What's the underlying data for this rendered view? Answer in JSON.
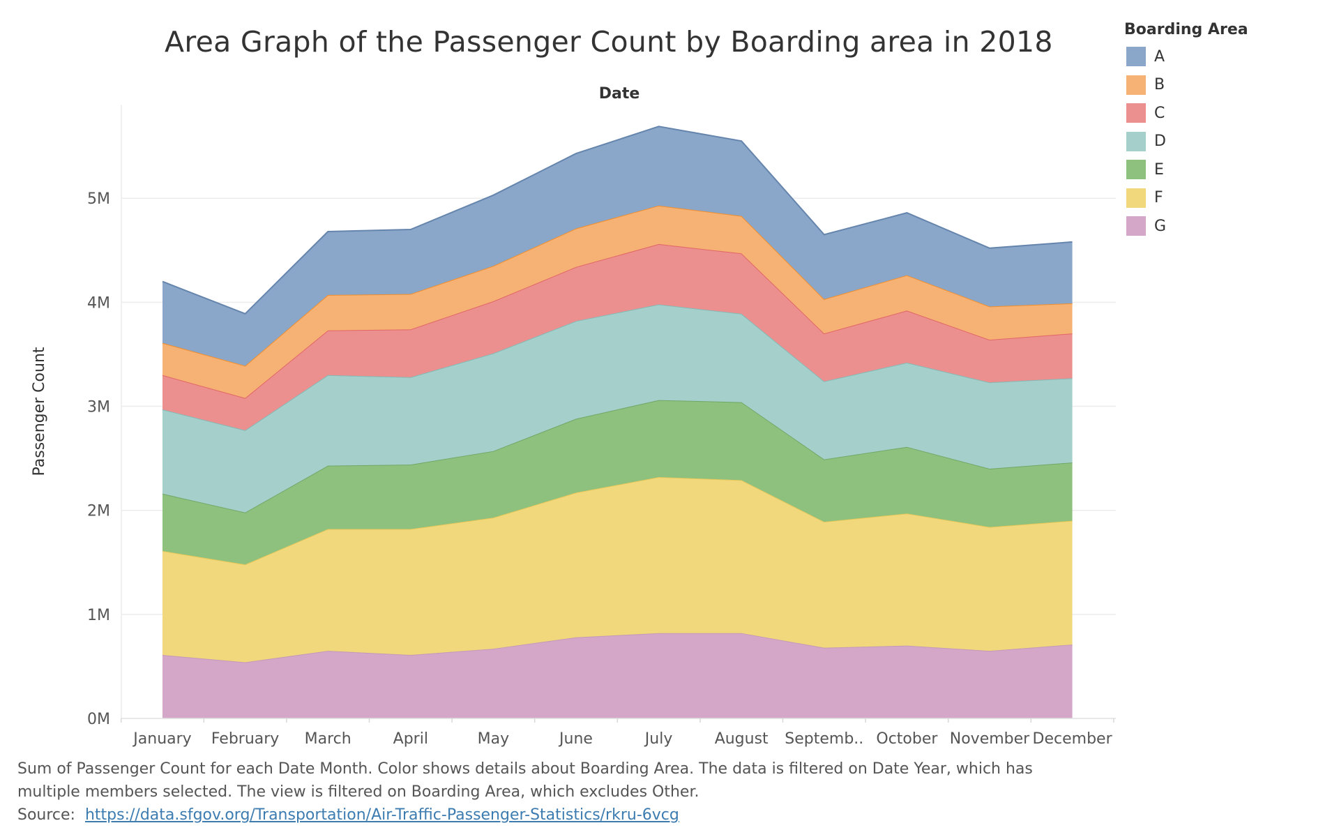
{
  "chart_data": {
    "type": "area",
    "stacked": true,
    "title": "Area Graph of the Passenger Count by Boarding area in 2018",
    "xlabel": "Date",
    "ylabel": "Passenger Count",
    "categories": [
      "January",
      "February",
      "March",
      "April",
      "May",
      "June",
      "July",
      "August",
      "Septemb..",
      "October",
      "November",
      "December"
    ],
    "yticks": [
      "0M",
      "1M",
      "2M",
      "3M",
      "4M",
      "5M"
    ],
    "ylim": [
      0,
      5900000
    ],
    "legend_title": "Boarding Area",
    "legend_position": "top-right",
    "series": [
      {
        "name": "G",
        "color": "#d4a6c8",
        "line": "#c29ab8",
        "values": [
          610000,
          540000,
          650000,
          610000,
          670000,
          780000,
          820000,
          820000,
          680000,
          700000,
          650000,
          710000
        ]
      },
      {
        "name": "F",
        "color": "#f1d87d",
        "line": "#e8c85a",
        "values": [
          1000000,
          940000,
          1170000,
          1210000,
          1260000,
          1390000,
          1500000,
          1470000,
          1210000,
          1270000,
          1190000,
          1190000
        ]
      },
      {
        "name": "E",
        "color": "#8ec07e",
        "line": "#6fa866",
        "values": [
          550000,
          500000,
          610000,
          620000,
          640000,
          710000,
          740000,
          750000,
          600000,
          640000,
          560000,
          560000
        ]
      },
      {
        "name": "D",
        "color": "#a5cfcb",
        "line": "#86b9b5",
        "values": [
          810000,
          790000,
          870000,
          840000,
          940000,
          940000,
          920000,
          850000,
          750000,
          810000,
          830000,
          810000
        ]
      },
      {
        "name": "C",
        "color": "#ec8f8f",
        "line": "#e06767",
        "values": [
          330000,
          310000,
          430000,
          460000,
          500000,
          520000,
          580000,
          580000,
          460000,
          500000,
          410000,
          430000
        ]
      },
      {
        "name": "B",
        "color": "#f6b174",
        "line": "#f28e2b",
        "values": [
          310000,
          310000,
          340000,
          340000,
          340000,
          370000,
          370000,
          360000,
          330000,
          340000,
          320000,
          290000
        ]
      },
      {
        "name": "A",
        "color": "#8aa7c9",
        "line": "#6585ad",
        "values": [
          590000,
          500000,
          610000,
          620000,
          680000,
          720000,
          760000,
          720000,
          620000,
          600000,
          560000,
          590000
        ]
      }
    ]
  },
  "legend_order": [
    "A",
    "B",
    "C",
    "D",
    "E",
    "F",
    "G"
  ],
  "caption": {
    "line1": "Sum of Passenger Count for each Date Month.  Color shows details about Boarding Area. The data is filtered on Date Year, which has",
    "line2": "multiple members selected. The view is filtered on Boarding Area, which excludes Other.",
    "source_label": "Source:",
    "source_url": "https://data.sfgov.org/Transportation/Air-Traffic-Passenger-Statistics/rkru-6vcg"
  }
}
